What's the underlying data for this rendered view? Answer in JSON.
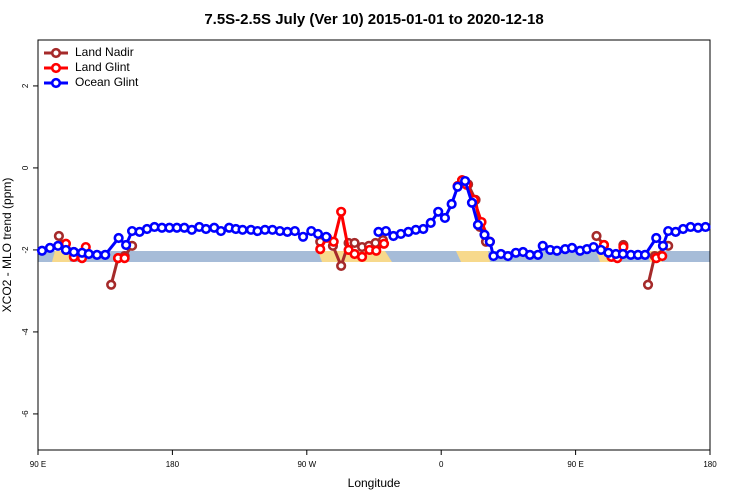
{
  "chart_data": {
    "type": "line",
    "title": "7.5S-2.5S July (Ver 10)   2015-01-01 to 2020-12-18",
    "x_label": "Longitude",
    "y_label": "XCO2 - MLO trend (ppm)",
    "xlim": [
      90,
      540
    ],
    "xticks": [
      {
        "value": 90,
        "label": "90 E"
      },
      180,
      {
        "value": 270,
        "label": "90 W"
      },
      {
        "value": 360,
        "label": "0"
      },
      {
        "value": 450,
        "label": "90 E"
      },
      {
        "value": 540,
        "label": "180"
      }
    ],
    "ylim": [
      -6.88,
      3.12
    ],
    "yticks": [
      -6,
      -4,
      -2,
      0,
      2
    ],
    "legend": "top-left",
    "series": [
      {
        "name": "Land Nadir",
        "color": "#a52a2a",
        "x": [
          104,
          109,
          114,
          125,
          139,
          143.6,
          148,
          153,
          200,
          279,
          283.5,
          287.5,
          293,
          298,
          302,
          307,
          311.6,
          316,
          321,
          350,
          374,
          378,
          383,
          386,
          390,
          430,
          464,
          469,
          474,
          478,
          482,
          490,
          498.5,
          503,
          512
        ],
        "values": [
          -1.66,
          -2.0,
          -2.05,
          null,
          -2.85,
          -2.2,
          -2.15,
          -1.9,
          null,
          -1.8,
          -1.7,
          -1.9,
          -2.39,
          -1.83,
          -1.83,
          -1.93,
          -1.9,
          -1.83,
          -1.76,
          null,
          -0.3,
          -0.4,
          -0.78,
          -1.44,
          -1.8,
          null,
          -1.66,
          -1.88,
          -2.15,
          -2.12,
          -1.88,
          null,
          -2.85,
          -2.15,
          -1.9
        ]
      },
      {
        "name": "Land Glint",
        "color": "#ff0000",
        "x": [
          108.7,
          114,
          119.5,
          122,
          130,
          143.6,
          148,
          200,
          279,
          283.5,
          288,
          293,
          298,
          302,
          307,
          312,
          316.5,
          321.7,
          350,
          371,
          374,
          377,
          382,
          387,
          392.6,
          430,
          469,
          474,
          478,
          482,
          490,
          504,
          508
        ],
        "values": [
          -1.85,
          -2.17,
          -2.2,
          -1.93,
          null,
          -2.2,
          -2.2,
          null,
          -1.98,
          -1.7,
          -1.8,
          -1.07,
          -2.0,
          -2.1,
          -2.17,
          -2.0,
          -2.02,
          -1.85,
          null,
          -0.44,
          -0.3,
          -0.41,
          -0.78,
          -1.32,
          -1.8,
          null,
          -1.88,
          -2.17,
          -2.2,
          -1.93,
          null,
          -2.2,
          -2.15
        ]
      },
      {
        "name": "Ocean Glint",
        "color": "#0000ff",
        "x": [
          92.7,
          98,
          103.4,
          108.7,
          114,
          119.5,
          124,
          129.5,
          135,
          144,
          149,
          153,
          158,
          163,
          168,
          173,
          178,
          183,
          188,
          193,
          198,
          202.5,
          208,
          212.5,
          218,
          222.5,
          227,
          232.6,
          237,
          242,
          247,
          252,
          257,
          262,
          267.5,
          273,
          277.5,
          283,
          300,
          318,
          323,
          328,
          333,
          338,
          343,
          348,
          353,
          358,
          362.5,
          367,
          371,
          376,
          380.6,
          384.6,
          389,
          392.6,
          395,
          400,
          404.7,
          410,
          414.8,
          419.4,
          424.8,
          428,
          433,
          437.5,
          443,
          447.6,
          453,
          457.6,
          462,
          467,
          472,
          477,
          481.7,
          487,
          491.8,
          496.5,
          504,
          508.5,
          512,
          517,
          522,
          527,
          532,
          537
        ],
        "values": [
          -2.02,
          -1.95,
          -1.9,
          -2.0,
          -2.05,
          -2.07,
          -2.1,
          -2.12,
          -2.12,
          -1.71,
          -1.88,
          -1.54,
          -1.56,
          -1.49,
          -1.44,
          -1.46,
          -1.46,
          -1.46,
          -1.46,
          -1.51,
          -1.44,
          -1.49,
          -1.46,
          -1.54,
          -1.46,
          -1.49,
          -1.51,
          -1.51,
          -1.54,
          -1.51,
          -1.51,
          -1.54,
          -1.56,
          -1.54,
          -1.68,
          -1.54,
          -1.61,
          -1.68,
          null,
          -1.56,
          -1.54,
          -1.66,
          -1.61,
          -1.56,
          -1.51,
          -1.49,
          -1.34,
          -1.07,
          -1.22,
          -0.88,
          -0.46,
          -0.32,
          -0.85,
          -1.39,
          -1.63,
          -1.8,
          -2.15,
          -2.1,
          -2.15,
          -2.07,
          -2.05,
          -2.12,
          -2.12,
          -1.9,
          -2.0,
          -2.02,
          -1.98,
          -1.95,
          -2.02,
          -1.98,
          -1.93,
          -2.0,
          -2.07,
          -2.1,
          -2.1,
          -2.12,
          -2.12,
          -2.12,
          -1.71,
          -1.9,
          -1.54,
          -1.56,
          -1.49,
          -1.44,
          -1.46,
          -1.44
        ]
      }
    ]
  }
}
